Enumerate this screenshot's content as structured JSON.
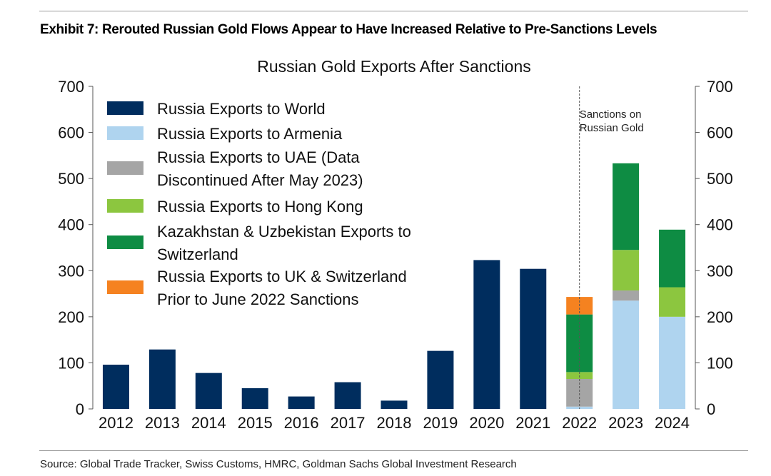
{
  "exhibit_title": "Exhibit 7: Rerouted Russian Gold Flows Appear to Have Increased Relative to Pre-Sanctions Levels",
  "source": "Source: Global Trade Tracker, Swiss Customs, HMRC, Goldman Sachs Global Investment Research",
  "chart_data": {
    "type": "bar",
    "stacked": true,
    "title": "Russian Gold Exports After Sanctions",
    "xlabel": "",
    "ylabel": "",
    "ylim": [
      0,
      700
    ],
    "yticks": [
      0,
      100,
      200,
      300,
      400,
      500,
      600,
      700
    ],
    "secondary_yaxis": true,
    "grid": false,
    "legend_position": "top-left",
    "categories": [
      "2012",
      "2013",
      "2014",
      "2015",
      "2016",
      "2017",
      "2018",
      "2019",
      "2020",
      "2021",
      "2022",
      "2023",
      "2024"
    ],
    "annotation": {
      "text_lines": [
        "Sanctions on",
        "Russian Gold"
      ],
      "at_category": "2022",
      "style": "dashed vertical line"
    },
    "series": [
      {
        "name_lines": [
          "Russia Exports to World"
        ],
        "color": "#002d5e",
        "values": [
          96,
          129,
          78,
          45,
          27,
          58,
          18,
          126,
          323,
          304,
          0,
          0,
          0
        ]
      },
      {
        "name_lines": [
          "Russia Exports to Armenia"
        ],
        "color": "#afd4ef",
        "values": [
          0,
          0,
          0,
          0,
          0,
          0,
          0,
          0,
          0,
          0,
          5,
          235,
          200
        ]
      },
      {
        "name_lines": [
          "Russia Exports to UAE (Data",
          "Discontinued After May 2023)"
        ],
        "color": "#a5a5a5",
        "values": [
          0,
          0,
          0,
          0,
          0,
          0,
          0,
          0,
          0,
          0,
          60,
          22,
          0
        ]
      },
      {
        "name_lines": [
          "Russia Exports to Hong Kong"
        ],
        "color": "#8cc63f",
        "values": [
          0,
          0,
          0,
          0,
          0,
          0,
          0,
          0,
          0,
          0,
          15,
          88,
          64
        ]
      },
      {
        "name_lines": [
          "Kazakhstan & Uzbekistan Exports to",
          "Switzerland"
        ],
        "color": "#0e8c43",
        "values": [
          0,
          0,
          0,
          0,
          0,
          0,
          0,
          0,
          0,
          0,
          125,
          188,
          125
        ]
      },
      {
        "name_lines": [
          "Russia Exports to UK & Switzerland",
          "Prior to June 2022 Sanctions"
        ],
        "color": "#f58220",
        "values": [
          0,
          0,
          0,
          0,
          0,
          0,
          0,
          0,
          0,
          0,
          38,
          0,
          0
        ]
      }
    ]
  }
}
